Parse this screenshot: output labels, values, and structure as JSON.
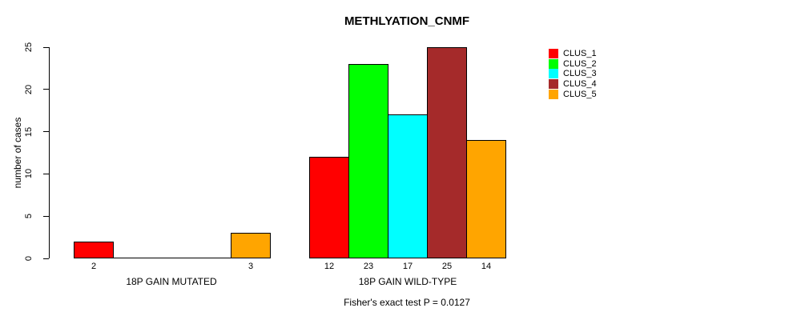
{
  "title": "METHLYATION_CNMF",
  "chart_data": {
    "type": "bar",
    "title": "METHLYATION_CNMF",
    "xlabel": "",
    "ylabel": "number of cases",
    "ylim": [
      0,
      25
    ],
    "yticks": [
      0,
      5,
      10,
      15,
      20,
      25
    ],
    "grid": false,
    "legend_position": "right-outside",
    "categories": [
      "18P GAIN MUTATED",
      "18P GAIN WILD-TYPE"
    ],
    "series": [
      {
        "name": "CLUS_1",
        "color": "#ff0000",
        "values": [
          2,
          12
        ]
      },
      {
        "name": "CLUS_2",
        "color": "#00ff00",
        "values": [
          0,
          23
        ]
      },
      {
        "name": "CLUS_3",
        "color": "#00ffff",
        "values": [
          0,
          17
        ]
      },
      {
        "name": "CLUS_4",
        "color": "#a52a2a",
        "values": [
          0,
          25
        ]
      },
      {
        "name": "CLUS_5",
        "color": "#ffa500",
        "values": [
          3,
          14
        ]
      }
    ],
    "bar_value_labels_shown": [
      "2",
      "3",
      "12",
      "23",
      "17",
      "25",
      "14"
    ],
    "annotation": "Fisher's exact test P = 0.0127"
  }
}
